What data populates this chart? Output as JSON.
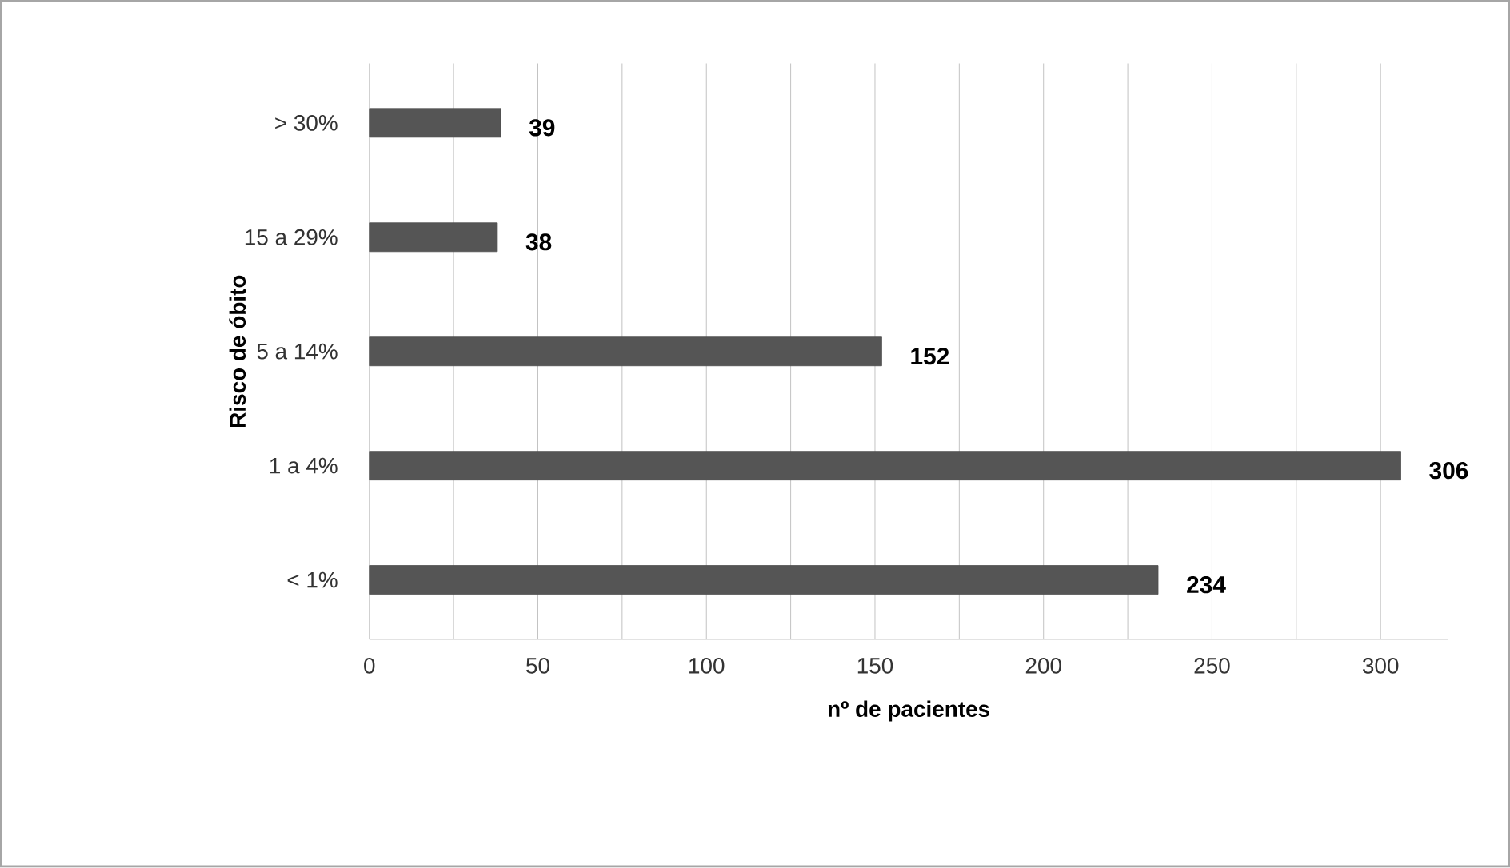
{
  "chart_data": {
    "type": "bar",
    "orientation": "horizontal",
    "ylabel": "Risco de óbito",
    "xlabel": "nº de pacientes",
    "categories": [
      "> 30%",
      "15 a 29%",
      "5 a 14%",
      "1 a 4%",
      "< 1%"
    ],
    "values": [
      39,
      38,
      152,
      306,
      234
    ],
    "color": "#555555",
    "data_labels": true,
    "xlim": [
      0,
      320
    ],
    "xticks": [
      0,
      {
        "value": 25,
        "label": null
      },
      50,
      {
        "value": 75,
        "label": null
      },
      100,
      {
        "value": 125,
        "label": null
      },
      150,
      {
        "value": 175,
        "label": null
      },
      200,
      {
        "value": 225,
        "label": null
      },
      250,
      {
        "value": 275,
        "label": null
      },
      300
    ],
    "grid": "x"
  }
}
